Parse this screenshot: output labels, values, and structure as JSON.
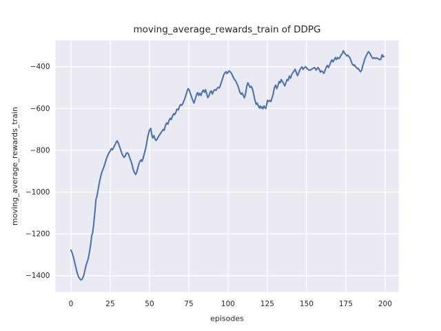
{
  "figure": {
    "title": "moving_average_rewards_train of DDPG",
    "xlabel": "episodes",
    "ylabel": "moving_average_rewards_train"
  },
  "chart_data": {
    "type": "line",
    "title": "moving_average_rewards_train of DDPG",
    "xlabel": "episodes",
    "ylabel": "moving_average_rewards_train",
    "legend": false,
    "grid": true,
    "x_ticks": [
      0,
      25,
      50,
      75,
      100,
      125,
      150,
      175,
      200
    ],
    "y_ticks": [
      -400,
      -600,
      -800,
      -1000,
      -1200,
      -1400
    ],
    "xlim": [
      -9.87,
      208.6
    ],
    "ylim": [
      -1478.5,
      -273.9
    ],
    "style": {
      "line_color": "#4c72b0",
      "axes_background": "#eaeaf2",
      "grid_color": "#ffffff",
      "text_color": "#262626",
      "figure_background": "#ffffff"
    },
    "series": [
      {
        "name": "moving_average_rewards_train",
        "points": [
          [
            0,
            -1278
          ],
          [
            0.7,
            -1290
          ],
          [
            1.5,
            -1310
          ],
          [
            2.3,
            -1335
          ],
          [
            3.1,
            -1361
          ],
          [
            4,
            -1388
          ],
          [
            4.8,
            -1405
          ],
          [
            5.6,
            -1415
          ],
          [
            6.4,
            -1421
          ],
          [
            7.2,
            -1416
          ],
          [
            8.2,
            -1397
          ],
          [
            9,
            -1370
          ],
          [
            9.8,
            -1345
          ],
          [
            10.4,
            -1333
          ],
          [
            11,
            -1318
          ],
          [
            11.7,
            -1290
          ],
          [
            12.5,
            -1253
          ],
          [
            13.2,
            -1209
          ],
          [
            13.8,
            -1195
          ],
          [
            14.5,
            -1150
          ],
          [
            15.3,
            -1090
          ],
          [
            15.9,
            -1035
          ],
          [
            16.5,
            -1022
          ],
          [
            17,
            -1000
          ],
          [
            18,
            -958
          ],
          [
            19,
            -922
          ],
          [
            20,
            -897
          ],
          [
            20.6,
            -888
          ],
          [
            21.8,
            -860
          ],
          [
            22.8,
            -835
          ],
          [
            24,
            -815
          ],
          [
            25,
            -803
          ],
          [
            25.7,
            -792
          ],
          [
            26.4,
            -798
          ],
          [
            27.6,
            -780
          ],
          [
            28.6,
            -765
          ],
          [
            29.4,
            -755
          ],
          [
            30.1,
            -764
          ],
          [
            30.8,
            -780
          ],
          [
            31.6,
            -797
          ],
          [
            32.3,
            -813
          ],
          [
            33,
            -825
          ],
          [
            33.8,
            -834
          ],
          [
            34.5,
            -828
          ],
          [
            35.2,
            -815
          ],
          [
            36,
            -812
          ],
          [
            36.7,
            -820
          ],
          [
            37.4,
            -836
          ],
          [
            38.2,
            -852
          ],
          [
            38.9,
            -869
          ],
          [
            39.6,
            -891
          ],
          [
            40.4,
            -907
          ],
          [
            41.1,
            -916
          ],
          [
            41.8,
            -907
          ],
          [
            42.5,
            -886
          ],
          [
            43.3,
            -864
          ],
          [
            44,
            -852
          ],
          [
            44.7,
            -846
          ],
          [
            45.2,
            -853
          ],
          [
            45.8,
            -841
          ],
          [
            46.6,
            -819
          ],
          [
            47.7,
            -787
          ],
          [
            48.4,
            -755
          ],
          [
            49.1,
            -728
          ],
          [
            49.9,
            -706
          ],
          [
            50.8,
            -695
          ],
          [
            51.5,
            -727
          ],
          [
            52,
            -741
          ],
          [
            52.8,
            -730
          ],
          [
            53.5,
            -747
          ],
          [
            54.2,
            -753
          ],
          [
            55,
            -745
          ],
          [
            55.8,
            -733
          ],
          [
            56.6,
            -724
          ],
          [
            58,
            -708
          ],
          [
            58.8,
            -700
          ],
          [
            59.3,
            -705
          ],
          [
            60.2,
            -680
          ],
          [
            61,
            -669
          ],
          [
            61.7,
            -675
          ],
          [
            62.4,
            -658
          ],
          [
            63.2,
            -647
          ],
          [
            63.9,
            -653
          ],
          [
            64.6,
            -636
          ],
          [
            65.4,
            -625
          ],
          [
            66,
            -630
          ],
          [
            66.8,
            -618
          ],
          [
            67.5,
            -603
          ],
          [
            68.3,
            -607
          ],
          [
            69,
            -592
          ],
          [
            69.7,
            -581
          ],
          [
            70.5,
            -585
          ],
          [
            71.2,
            -576
          ],
          [
            72,
            -562
          ],
          [
            73,
            -541
          ],
          [
            74,
            -515
          ],
          [
            74.6,
            -505
          ],
          [
            75.3,
            -512
          ],
          [
            76,
            -528
          ],
          [
            76.8,
            -545
          ],
          [
            77.6,
            -562
          ],
          [
            78.3,
            -574
          ],
          [
            79.1,
            -556
          ],
          [
            79.8,
            -536
          ],
          [
            80.6,
            -524
          ],
          [
            81.3,
            -538
          ],
          [
            82,
            -527
          ],
          [
            82.8,
            -538
          ],
          [
            83.5,
            -521
          ],
          [
            84.2,
            -512
          ],
          [
            85,
            -523
          ],
          [
            85.7,
            -510
          ],
          [
            86.4,
            -530
          ],
          [
            87.1,
            -548
          ],
          [
            87.9,
            -538
          ],
          [
            88.6,
            -521
          ],
          [
            89.3,
            -516
          ],
          [
            90,
            -531
          ],
          [
            90.8,
            -516
          ],
          [
            91.5,
            -510
          ],
          [
            92.3,
            -513
          ],
          [
            93,
            -504
          ],
          [
            93.7,
            -499
          ],
          [
            94.4,
            -502
          ],
          [
            95.2,
            -488
          ],
          [
            95.9,
            -471
          ],
          [
            96.6,
            -455
          ],
          [
            97.3,
            -438
          ],
          [
            98.1,
            -429
          ],
          [
            98.8,
            -424
          ],
          [
            99.3,
            -433
          ],
          [
            100,
            -427
          ],
          [
            100.7,
            -420
          ],
          [
            101.3,
            -424
          ],
          [
            102,
            -430
          ],
          [
            102.6,
            -438
          ],
          [
            103.2,
            -449
          ],
          [
            104,
            -460
          ],
          [
            104.7,
            -466
          ],
          [
            105.4,
            -477
          ],
          [
            106.1,
            -488
          ],
          [
            106.8,
            -504
          ],
          [
            107.5,
            -521
          ],
          [
            108.3,
            -532
          ],
          [
            109,
            -526
          ],
          [
            109.7,
            -538
          ],
          [
            110.4,
            -549
          ],
          [
            111.2,
            -527
          ],
          [
            111.9,
            -494
          ],
          [
            112.6,
            -477
          ],
          [
            113.3,
            -488
          ],
          [
            114.1,
            -499
          ],
          [
            114.8,
            -494
          ],
          [
            115.7,
            -510
          ],
          [
            116.4,
            -535
          ],
          [
            117.1,
            -560
          ],
          [
            117.9,
            -580
          ],
          [
            118.6,
            -574
          ],
          [
            119.3,
            -589
          ],
          [
            120,
            -598
          ],
          [
            120.5,
            -588
          ],
          [
            121.1,
            -598
          ],
          [
            121.6,
            -592
          ],
          [
            122.2,
            -601
          ],
          [
            122.9,
            -588
          ],
          [
            123.4,
            -596
          ],
          [
            124,
            -600
          ],
          [
            124.6,
            -582
          ],
          [
            125.1,
            -561
          ],
          [
            125.9,
            -567
          ],
          [
            126.6,
            -561
          ],
          [
            127.3,
            -567
          ],
          [
            128,
            -549
          ],
          [
            128.7,
            -532
          ],
          [
            129.5,
            -500
          ],
          [
            130.3,
            -488
          ],
          [
            131,
            -505
          ],
          [
            131.8,
            -490
          ],
          [
            132.5,
            -471
          ],
          [
            133.2,
            -477
          ],
          [
            133.9,
            -461
          ],
          [
            134.6,
            -471
          ],
          [
            135.4,
            -481
          ],
          [
            136.1,
            -492
          ],
          [
            136.8,
            -478
          ],
          [
            137.6,
            -461
          ],
          [
            138.3,
            -466
          ],
          [
            139,
            -445
          ],
          [
            139.8,
            -455
          ],
          [
            140.5,
            -438
          ],
          [
            141.2,
            -429
          ],
          [
            142,
            -421
          ],
          [
            142.7,
            -412
          ],
          [
            143.4,
            -427
          ],
          [
            144.2,
            -443
          ],
          [
            145,
            -429
          ],
          [
            145.6,
            -417
          ],
          [
            146.3,
            -408
          ],
          [
            147.1,
            -401
          ],
          [
            147.8,
            -413
          ],
          [
            148.6,
            -405
          ],
          [
            149.3,
            -400
          ],
          [
            150.1,
            -407
          ],
          [
            150.7,
            -411
          ],
          [
            151.5,
            -416
          ],
          [
            152.2,
            -417
          ],
          [
            153,
            -413
          ],
          [
            153.6,
            -410
          ],
          [
            154.4,
            -407
          ],
          [
            155.1,
            -404
          ],
          [
            156.1,
            -416
          ],
          [
            157.3,
            -404
          ],
          [
            158,
            -412
          ],
          [
            158.8,
            -426
          ],
          [
            159.5,
            -420
          ],
          [
            160.2,
            -424
          ],
          [
            161,
            -432
          ],
          [
            161.7,
            -419
          ],
          [
            162.4,
            -404
          ],
          [
            163.2,
            -394
          ],
          [
            163.9,
            -404
          ],
          [
            164.7,
            -392
          ],
          [
            165.4,
            -377
          ],
          [
            166.1,
            -367
          ],
          [
            166.8,
            -377
          ],
          [
            167.6,
            -367
          ],
          [
            168.3,
            -356
          ],
          [
            169,
            -366
          ],
          [
            169.7,
            -356
          ],
          [
            170.5,
            -361
          ],
          [
            171.2,
            -357
          ],
          [
            171.9,
            -344
          ],
          [
            172.7,
            -338
          ],
          [
            173.4,
            -324
          ],
          [
            174.1,
            -334
          ],
          [
            174.9,
            -341
          ],
          [
            175.6,
            -349
          ],
          [
            176.3,
            -345
          ],
          [
            177,
            -352
          ],
          [
            177.8,
            -361
          ],
          [
            178.5,
            -377
          ],
          [
            179.2,
            -389
          ],
          [
            180,
            -394
          ],
          [
            180.4,
            -391
          ],
          [
            181,
            -398
          ],
          [
            181.7,
            -404
          ],
          [
            182.4,
            -410
          ],
          [
            182.9,
            -408
          ],
          [
            183.6,
            -417
          ],
          [
            184.3,
            -424
          ],
          [
            185.1,
            -416
          ],
          [
            185.8,
            -394
          ],
          [
            186.5,
            -377
          ],
          [
            187.2,
            -361
          ],
          [
            188,
            -347
          ],
          [
            188.7,
            -336
          ],
          [
            189.4,
            -328
          ],
          [
            190.1,
            -334
          ],
          [
            190.9,
            -345
          ],
          [
            191.6,
            -355
          ],
          [
            192.3,
            -361
          ],
          [
            193.1,
            -357
          ],
          [
            193.8,
            -361
          ],
          [
            194.5,
            -357
          ],
          [
            195.2,
            -361
          ],
          [
            196,
            -364
          ],
          [
            196.7,
            -367
          ],
          [
            197.4,
            -363
          ],
          [
            197.9,
            -345
          ],
          [
            198.3,
            -343
          ],
          [
            198.7,
            -353
          ],
          [
            199.2,
            -351
          ]
        ]
      }
    ]
  }
}
